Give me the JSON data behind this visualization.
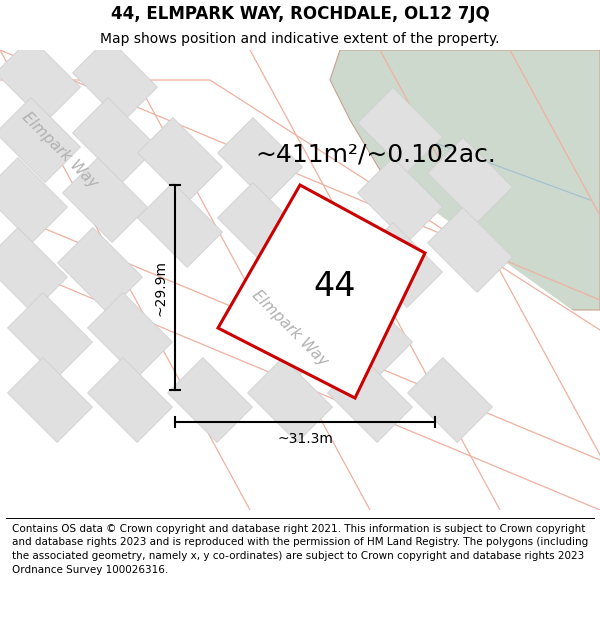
{
  "title": "44, ELMPARK WAY, ROCHDALE, OL12 7JQ",
  "subtitle": "Map shows position and indicative extent of the property.",
  "area_label": "~411m²/~0.102ac.",
  "number_label": "44",
  "dim_height": "~29.9m",
  "dim_width": "~31.3m",
  "street_label_main": "Elmpark Way",
  "street_label_left": "Elmpark Way",
  "footer": "Contains OS data © Crown copyright and database right 2021. This information is subject to Crown copyright and database rights 2023 and is reproduced with the permission of HM Land Registry. The polygons (including the associated geometry, namely x, y co-ordinates) are subject to Crown copyright and database rights 2023 Ordnance Survey 100026316.",
  "map_bg": "#f5f5f5",
  "road_fill": "#ffffff",
  "road_line": "#f0b0a0",
  "green_color": "#ccd9cc",
  "green_line": "#c8a090",
  "block_fill": "#e0e0e0",
  "block_edge": "#d0d0d0",
  "plot_fill": "#ffffff",
  "plot_stroke": "#cc0000",
  "dim_color": "#000000",
  "street_color": "#b0b0b0",
  "title_size": 12,
  "subtitle_size": 10,
  "area_size": 18,
  "number_size": 24,
  "dim_size": 10,
  "street_size": 11,
  "footer_size": 7.5
}
